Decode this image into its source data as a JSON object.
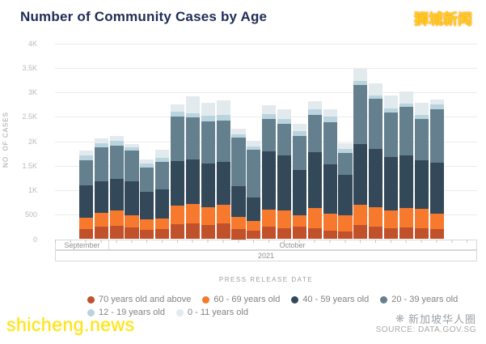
{
  "header": {
    "title": "Number of Community Cases by Age",
    "watermark_top_right": "狮城新闻"
  },
  "chart_data": {
    "type": "bar",
    "stacked": true,
    "title": "Number of Community Cases by Age",
    "xlabel": "PRESS RELEASE DATE",
    "ylabel": "NO. OF CASES",
    "ylim": [
      0,
      4000
    ],
    "yticks": [
      "0",
      "500",
      "1K",
      "1.5K",
      "2K",
      "2.5K",
      "3K",
      "3.5K",
      "4K"
    ],
    "grid": true,
    "legend_position": "bottom",
    "x_axis_groups": {
      "months": [
        "September",
        "October"
      ],
      "year": "2021",
      "september_slots": 2
    },
    "num_bars": 24,
    "series": [
      {
        "name": "70 years old and above",
        "color": "#c0512b",
        "values": [
          210,
          260,
          275,
          235,
          195,
          205,
          305,
          330,
          295,
          315,
          205,
          180,
          250,
          220,
          260,
          220,
          170,
          165,
          285,
          260,
          230,
          240,
          225,
          205
        ]
      },
      {
        "name": "60 - 69 years old",
        "color": "#f6792d",
        "values": [
          220,
          275,
          305,
          260,
          205,
          210,
          375,
          385,
          350,
          385,
          255,
          190,
          360,
          370,
          220,
          420,
          345,
          320,
          420,
          400,
          360,
          400,
          390,
          320
        ]
      },
      {
        "name": "40 - 59 years old",
        "color": "#33495a",
        "values": [
          675,
          650,
          650,
          680,
          575,
          605,
          920,
          910,
          900,
          875,
          615,
          485,
          1185,
          1120,
          940,
          1130,
          1010,
          825,
          1230,
          1180,
          1080,
          1070,
          1000,
          1040
        ]
      },
      {
        "name": "20 - 39 years old",
        "color": "#64808e",
        "values": [
          500,
          690,
          675,
          630,
          495,
          555,
          910,
          855,
          855,
          840,
          995,
          965,
          660,
          640,
          690,
          770,
          870,
          455,
          1210,
          1030,
          925,
          985,
          840,
          1095
        ]
      },
      {
        "name": "12 - 19 years old",
        "color": "#b9d4de",
        "values": [
          110,
          85,
          100,
          70,
          75,
          85,
          100,
          85,
          115,
          130,
          65,
          70,
          105,
          105,
          95,
          110,
          105,
          80,
          85,
          70,
          70,
          75,
          85,
          85
        ]
      },
      {
        "name": "0 - 11 years old",
        "color": "#e3eaee",
        "values": [
          95,
          90,
          105,
          65,
          85,
          160,
          135,
          345,
          265,
          285,
          115,
          125,
          170,
          205,
          155,
          165,
          160,
          115,
          250,
          250,
          275,
          240,
          250,
          100
        ]
      }
    ],
    "bar_totals": [
      1810,
      2050,
      2110,
      1940,
      1630,
      1820,
      2745,
      2910,
      2780,
      2830,
      2250,
      2015,
      2730,
      2660,
      2360,
      2815,
      2660,
      1960,
      3480,
      3190,
      2940,
      3010,
      2790,
      2845
    ],
    "legend_rows": [
      [
        0,
        1,
        2,
        3
      ],
      [
        4,
        5
      ]
    ]
  },
  "footer": {
    "watermark_bottom_left": "shicheng.news",
    "brand": "新加坡华人圈",
    "source": "SOURCE: DATA.GOV.SG"
  }
}
